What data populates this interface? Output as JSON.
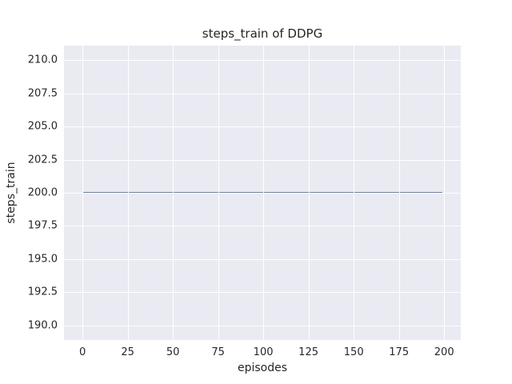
{
  "figure": {
    "background": "#ffffff",
    "plot_background": "#eaeaf2",
    "grid_color": "#ffffff",
    "text_color": "#262626"
  },
  "chart_data": {
    "type": "line",
    "title": "steps_train of DDPG",
    "xlabel": "episodes",
    "ylabel": "steps_train",
    "x_tick_values": [
      0,
      25,
      50,
      75,
      100,
      125,
      150,
      175,
      200
    ],
    "x_tick_labels": [
      "0",
      "25",
      "50",
      "75",
      "100",
      "125",
      "150",
      "175",
      "200"
    ],
    "y_tick_values": [
      190.0,
      192.5,
      195.0,
      197.5,
      200.0,
      202.5,
      205.0,
      207.5,
      210.0
    ],
    "y_tick_labels": [
      "190.0",
      "192.5",
      "195.0",
      "197.5",
      "200.0",
      "202.5",
      "205.0",
      "207.5",
      "210.0"
    ],
    "xlim": [
      -10.2,
      209.2
    ],
    "ylim": [
      188.9,
      211.1
    ],
    "grid": true,
    "legend_position": "none",
    "series": [
      {
        "name": "steps_train",
        "color": "#4c72b0",
        "x": [
          0,
          199
        ],
        "y": [
          200,
          200
        ]
      }
    ]
  }
}
